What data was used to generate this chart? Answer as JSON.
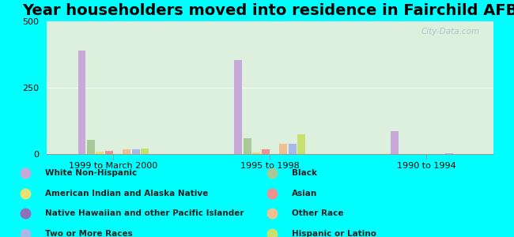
{
  "title": "Year householders moved into residence in Fairchild AFB",
  "categories": [
    "1999 to March 2000",
    "1995 to 1998",
    "1990 to 1994"
  ],
  "series_order": [
    "White Non-Hispanic",
    "Black",
    "American Indian and Alaska Native",
    "Asian",
    "Native Hawaiian and other Pacific Islander",
    "Other Race",
    "Two or More Races",
    "Hispanic or Latino"
  ],
  "series": {
    "White Non-Hispanic": [
      390,
      355,
      85
    ],
    "Black": [
      55,
      60,
      0
    ],
    "American Indian and Alaska Native": [
      8,
      5,
      0
    ],
    "Asian": [
      12,
      18,
      0
    ],
    "Native Hawaiian and other Pacific Islander": [
      0,
      0,
      0
    ],
    "Other Race": [
      18,
      40,
      0
    ],
    "Two or More Races": [
      18,
      38,
      2
    ],
    "Hispanic or Latino": [
      22,
      75,
      0
    ]
  },
  "colors": {
    "White Non-Hispanic": "#c8a8d8",
    "Black": "#a8c898",
    "American Indian and Alaska Native": "#e8e070",
    "Asian": "#f09090",
    "Native Hawaiian and other Pacific Islander": "#9070b8",
    "Other Race": "#f0c090",
    "Two or More Races": "#a8b8e8",
    "Hispanic or Latino": "#c8e070"
  },
  "ylim": [
    0,
    500
  ],
  "yticks": [
    0,
    250,
    500
  ],
  "background_color": "#00ffff",
  "plot_bg_color": "#d8eed8",
  "title_fontsize": 14,
  "bar_width": 0.035,
  "group_centers": [
    0.3,
    1.0,
    1.7
  ],
  "xlim": [
    0.0,
    2.0
  ],
  "legend_left": [
    [
      "White Non-Hispanic",
      "#c8a8d8"
    ],
    [
      "American Indian and Alaska Native",
      "#e8e070"
    ],
    [
      "Native Hawaiian and other Pacific Islander",
      "#9070b8"
    ],
    [
      "Two or More Races",
      "#a8b8e8"
    ]
  ],
  "legend_right": [
    [
      "Black",
      "#a8c898"
    ],
    [
      "Asian",
      "#f09090"
    ],
    [
      "Other Race",
      "#f0c090"
    ],
    [
      "Hispanic or Latino",
      "#c8e070"
    ]
  ]
}
